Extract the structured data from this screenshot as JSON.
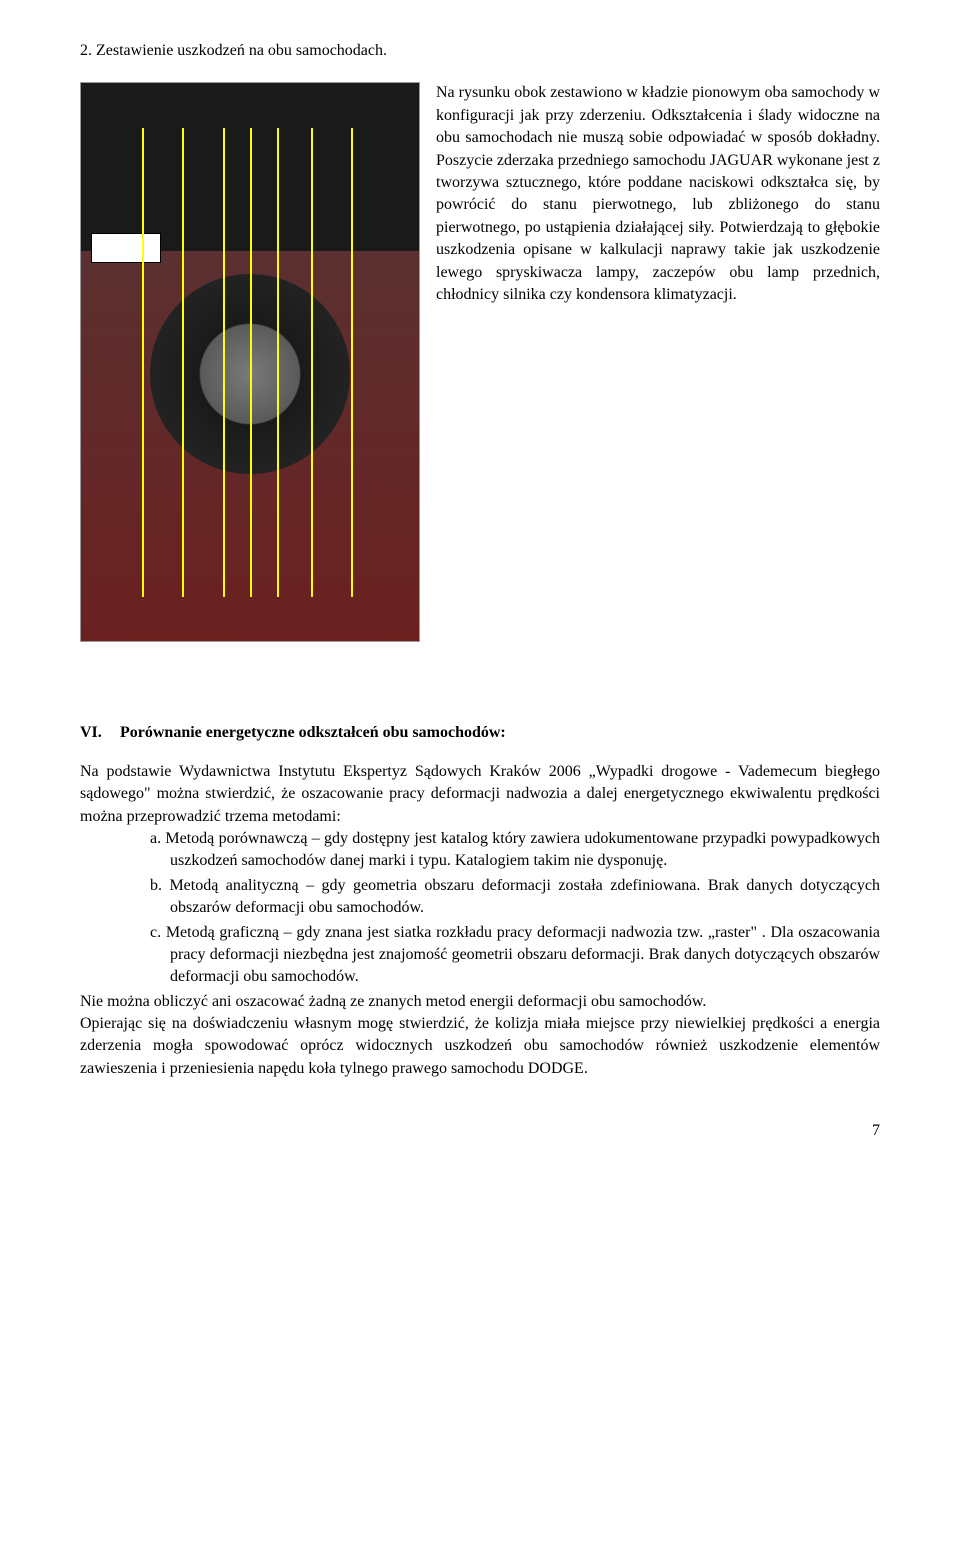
{
  "section2": {
    "heading": "2.  Zestawienie uszkodzeń na obu samochodach.",
    "paragraph": "Na rysunku obok zestawiono w kładzie pionowym oba samochody w konfiguracji jak przy zderzeniu. Odkształcenia i ślady widoczne na obu samochodach nie muszą sobie odpowiadać w sposób dokładny. Poszycie zderzaka przedniego samochodu JAGUAR wykonane jest z tworzywa sztucznego, które poddane naciskowi odkształca się, by powrócić do stanu pierwotnego, lub zbliżonego do stanu pierwotnego, po ustąpienia działającej siły. Potwierdzają to głębokie uszkodzenia opisane w kalkulacji naprawy takie jak uszkodzenie lewego spryskiwacza lampy, zaczepów obu lamp przednich, chłodnicy silnika czy kondensora klimatyzacji.",
    "overlay_line_color": "#ffff00",
    "line_positions_pct": [
      18,
      30,
      42,
      50,
      58,
      68,
      80
    ]
  },
  "sectionVI": {
    "roman": "VI.",
    "title": "Porównanie energetyczne odkształceń obu samochodów:",
    "intro": "Na podstawie Wydawnictwa Instytutu Ekspertyz Sądowych Kraków 2006 „Wypadki drogowe - Vademecum biegłego sądowego\"  można stwierdzić, że oszacowanie pracy deformacji nadwozia a dalej energetycznego ekwiwalentu prędkości można przeprowadzić trzema metodami:",
    "items": [
      {
        "letter": "a.",
        "text": "Metodą porównawczą – gdy dostępny jest katalog który zawiera udokumentowane przypadki powypadkowych uszkodzeń samochodów danej marki i typu. Katalogiem takim nie dysponuję."
      },
      {
        "letter": "b.",
        "text": "Metodą analityczną – gdy geometria obszaru deformacji została zdefiniowana. Brak danych dotyczących obszarów deformacji obu samochodów."
      },
      {
        "letter": "c.",
        "text": "Metodą graficzną – gdy znana jest siatka rozkładu pracy deformacji nadwozia tzw. „raster\" . Dla oszacowania pracy deformacji niezbędna jest znajomość geometrii obszaru deformacji. Brak danych dotyczących obszarów deformacji obu samochodów."
      }
    ],
    "conclusion1": "Nie można obliczyć ani oszacować żadną ze znanych metod energii deformacji obu samochodów.",
    "conclusion2": "Opierając się na doświadczeniu własnym mogę stwierdzić, że kolizja miała miejsce przy niewielkiej prędkości a energia zderzenia mogła spowodować oprócz widocznych uszkodzeń obu samochodów również uszkodzenie elementów zawieszenia i przeniesienia napędu koła tylnego prawego samochodu DODGE."
  },
  "page_number": "7"
}
